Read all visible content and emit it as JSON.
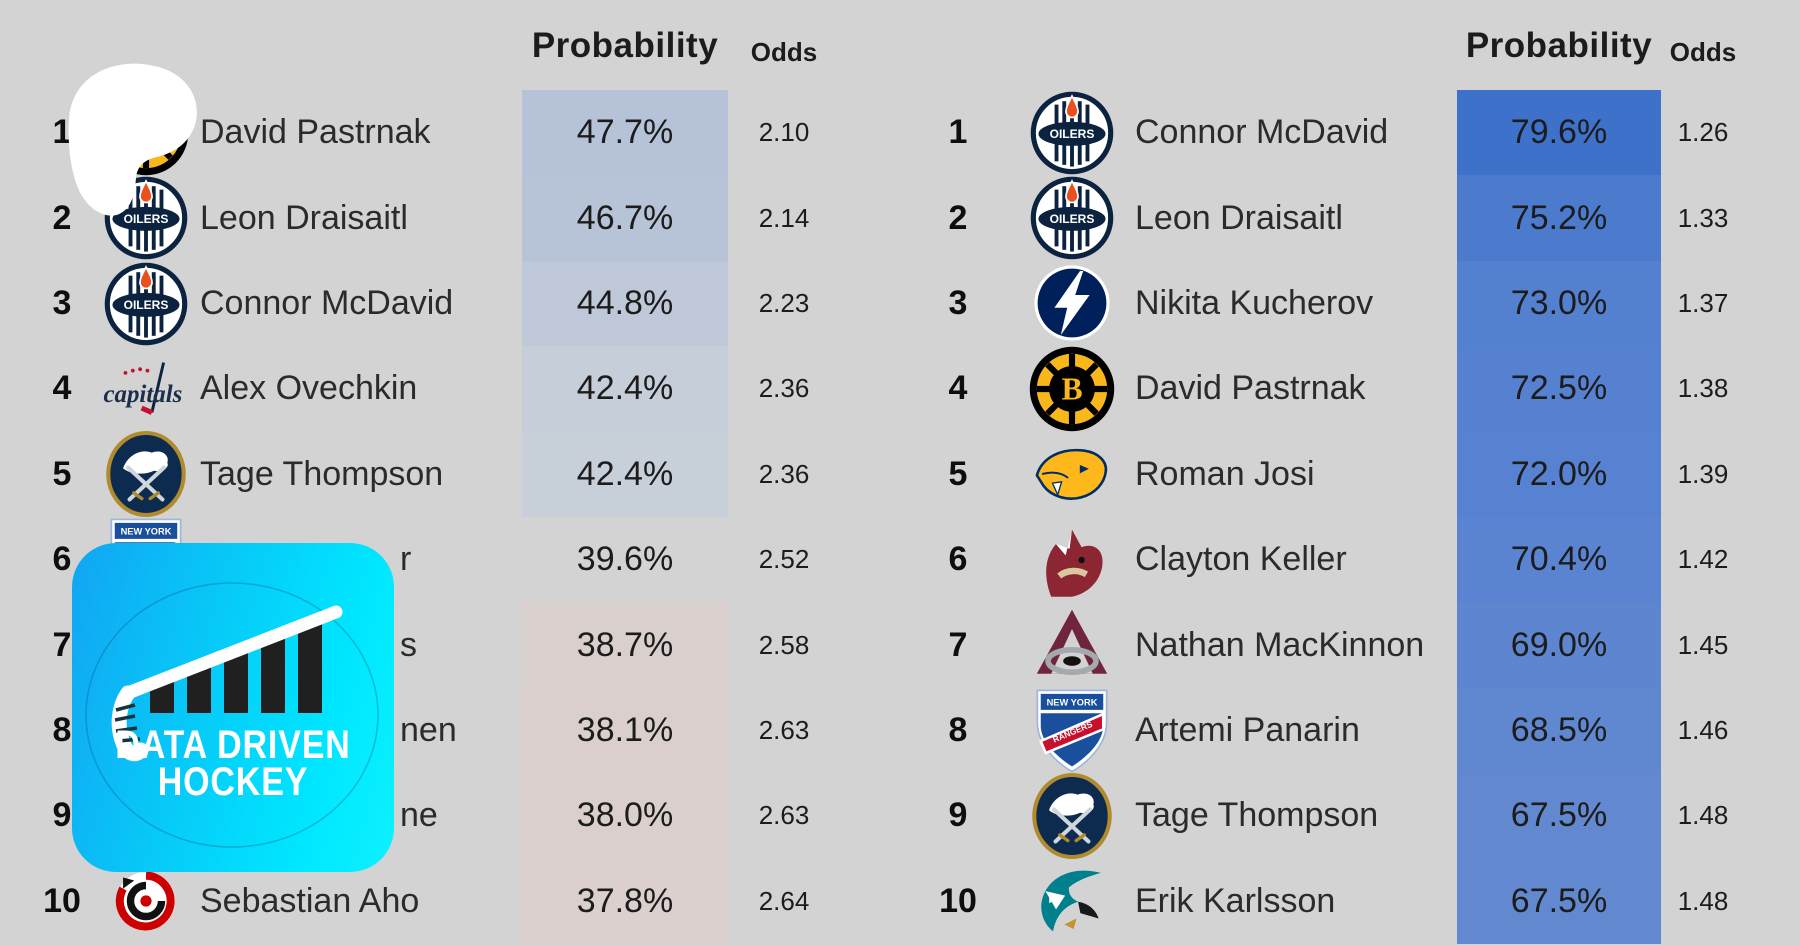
{
  "background_color": "#d3d3d3",
  "watermark": {
    "line1": "DATA DRIVEN",
    "line2": "HOCKEY",
    "gradient_start": "#12a5f2",
    "gradient_end": "#0cf2ff"
  },
  "tables": [
    {
      "id": "left",
      "header": {
        "probability": "Probability",
        "odds": "Odds"
      },
      "rows": [
        {
          "rank": "1",
          "team": "bruins",
          "name": "David Pastrnak",
          "prob": "47.7%",
          "odds": "2.10",
          "cell": "#b5c2d7",
          "occluded_by": "white-blob"
        },
        {
          "rank": "2",
          "team": "oilers",
          "name": "Leon Draisaitl",
          "prob": "46.7%",
          "odds": "2.14",
          "cell": "#b7c3d7"
        },
        {
          "rank": "3",
          "team": "oilers",
          "name": "Connor McDavid",
          "prob": "44.8%",
          "odds": "2.23",
          "cell": "#bec8d8"
        },
        {
          "rank": "4",
          "team": "capitals",
          "name": "Alex Ovechkin",
          "prob": "42.4%",
          "odds": "2.36",
          "cell": "#c6ced9"
        },
        {
          "rank": "5",
          "team": "sabres",
          "name": "Tage Thompson",
          "prob": "42.4%",
          "odds": "2.36",
          "cell": "#c7cfd9"
        },
        {
          "rank": "6",
          "team": "rangers",
          "name": "r",
          "partial": true,
          "prob": "39.6%",
          "odds": "2.52",
          "cell": "#d4d3d3",
          "occluded_by": "watermark"
        },
        {
          "rank": "7",
          "team": null,
          "name": "s",
          "partial": true,
          "prob": "38.7%",
          "odds": "2.58",
          "cell": "#d9cfcc",
          "occluded_by": "watermark"
        },
        {
          "rank": "8",
          "team": null,
          "name": "nen",
          "partial": true,
          "prob": "38.1%",
          "odds": "2.63",
          "cell": "#dacfcc",
          "occluded_by": "watermark"
        },
        {
          "rank": "9",
          "team": null,
          "name": "ne",
          "partial": true,
          "prob": "38.0%",
          "odds": "2.63",
          "cell": "#dacfcc",
          "occluded_by": "watermark"
        },
        {
          "rank": "10",
          "team": "hurricanes",
          "name": "Sebastian Aho",
          "prob": "37.8%",
          "odds": "2.64",
          "cell": "#dbd0ce"
        }
      ]
    },
    {
      "id": "right",
      "header": {
        "probability": "Probability",
        "odds": "Odds"
      },
      "rows": [
        {
          "rank": "1",
          "team": "oilers",
          "name": "Connor McDavid",
          "prob": "79.6%",
          "odds": "1.26",
          "cell": "#3e71ca"
        },
        {
          "rank": "2",
          "team": "oilers",
          "name": "Leon Draisaitl",
          "prob": "75.2%",
          "odds": "1.33",
          "cell": "#4c7bce"
        },
        {
          "rank": "3",
          "team": "lightning",
          "name": "Nikita Kucherov",
          "prob": "73.0%",
          "odds": "1.37",
          "cell": "#5480d0"
        },
        {
          "rank": "4",
          "team": "bruins",
          "name": "David Pastrnak",
          "prob": "72.5%",
          "odds": "1.38",
          "cell": "#5681d1"
        },
        {
          "rank": "5",
          "team": "predators",
          "name": "Roman Josi",
          "prob": "72.0%",
          "odds": "1.39",
          "cell": "#5782d1"
        },
        {
          "rank": "6",
          "team": "coyotes",
          "name": "Clayton Keller",
          "prob": "70.4%",
          "odds": "1.42",
          "cell": "#5a84d1"
        },
        {
          "rank": "7",
          "team": "avalanche",
          "name": "Nathan MacKinnon",
          "prob": "69.0%",
          "odds": "1.45",
          "cell": "#5e86d0"
        },
        {
          "rank": "8",
          "team": "rangers",
          "name": "Artemi Panarin",
          "prob": "68.5%",
          "odds": "1.46",
          "cell": "#6088d0"
        },
        {
          "rank": "9",
          "team": "sabres",
          "name": "Tage Thompson",
          "prob": "67.5%",
          "odds": "1.48",
          "cell": "#6289cf"
        },
        {
          "rank": "10",
          "team": "sharks",
          "name": "Erik Karlsson",
          "prob": "67.5%",
          "odds": "1.48",
          "cell": "#6289cf"
        }
      ]
    }
  ]
}
